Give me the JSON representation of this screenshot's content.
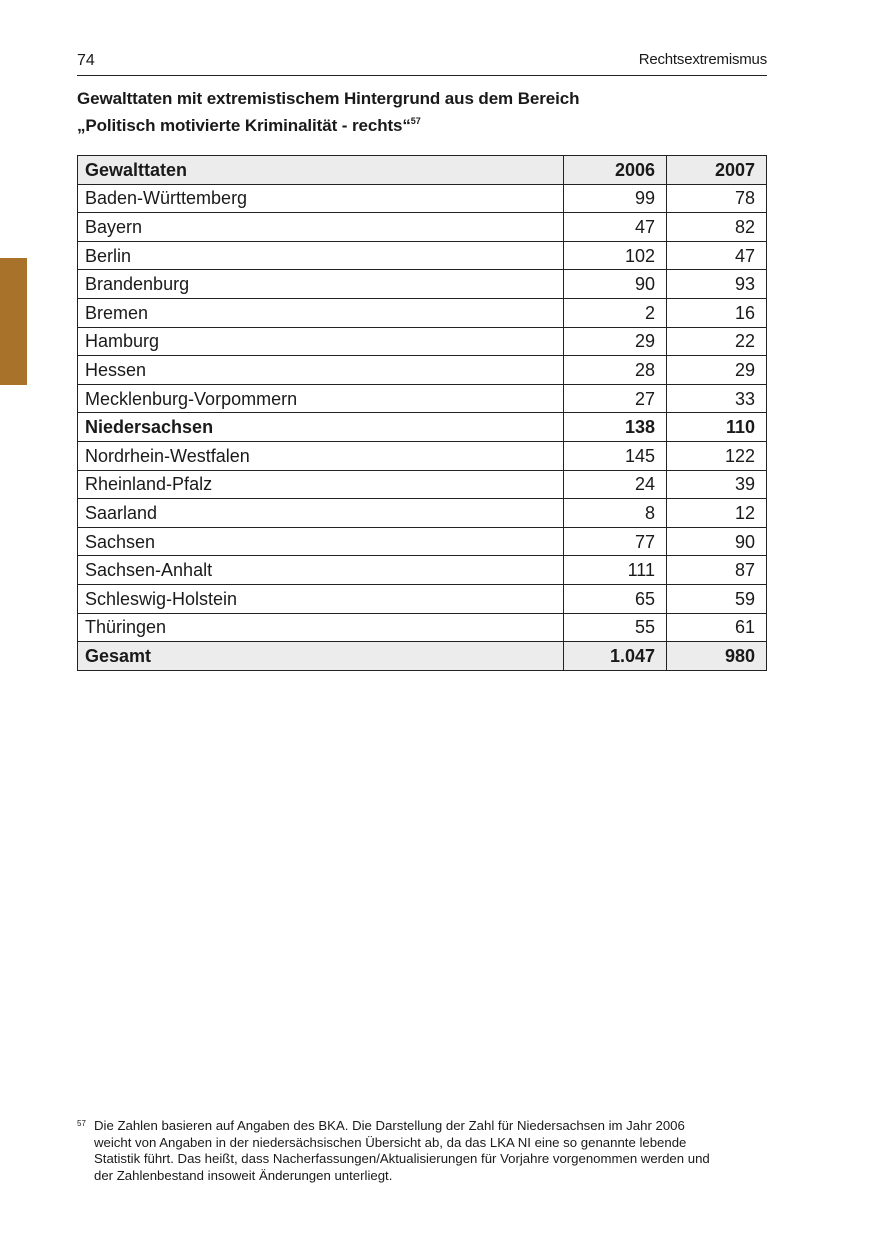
{
  "page": {
    "number": "74",
    "running_head": "Rechtsextremismus",
    "accent_color": "#a8722a"
  },
  "title": {
    "line1": "Gewalttaten mit extremistischem Hintergrund aus dem Bereich",
    "line2": "„Politisch motivierte Kriminalität - rechts“",
    "footnote_ref": "57"
  },
  "table": {
    "headers": [
      "Gewalttaten",
      "2006",
      "2007"
    ],
    "rows": [
      [
        "Baden-Württemberg",
        "99",
        "78"
      ],
      [
        "Bayern",
        "47",
        "82"
      ],
      [
        "Berlin",
        "102",
        "47"
      ],
      [
        "Brandenburg",
        "90",
        "93"
      ],
      [
        "Bremen",
        "2",
        "16"
      ],
      [
        "Hamburg",
        "29",
        "22"
      ],
      [
        "Hessen",
        "28",
        "29"
      ],
      [
        "Mecklenburg-Vorpommern",
        "27",
        "33"
      ],
      [
        "Niedersachsen",
        "138",
        "110"
      ],
      [
        "Nordrhein-Westfalen",
        "145",
        "122"
      ],
      [
        "Rheinland-Pfalz",
        "24",
        "39"
      ],
      [
        "Saarland",
        "8",
        "12"
      ],
      [
        "Sachsen",
        "77",
        "90"
      ],
      [
        "Sachsen-Anhalt",
        "111",
        "87"
      ],
      [
        "Schleswig-Holstein",
        "65",
        "59"
      ],
      [
        "Thüringen",
        "55",
        "61"
      ]
    ],
    "bold_row": "Niedersachsen",
    "total": [
      "Gesamt",
      "1.047",
      "980"
    ]
  },
  "footnote": {
    "mark": "57",
    "lines": [
      "Die Zahlen basieren auf Angaben des BKA. Die Darstellung der Zahl für Niedersachsen im Jahr 2006",
      "weicht von Angaben in der niedersächsischen Übersicht ab, da das LKA NI eine so genannte lebende",
      "Statistik führt. Das heißt, dass Nacherfassungen/Aktualisierungen für Vorjahre vorgenommen werden und",
      "der Zahlenbestand insoweit Änderungen unterliegt."
    ]
  }
}
